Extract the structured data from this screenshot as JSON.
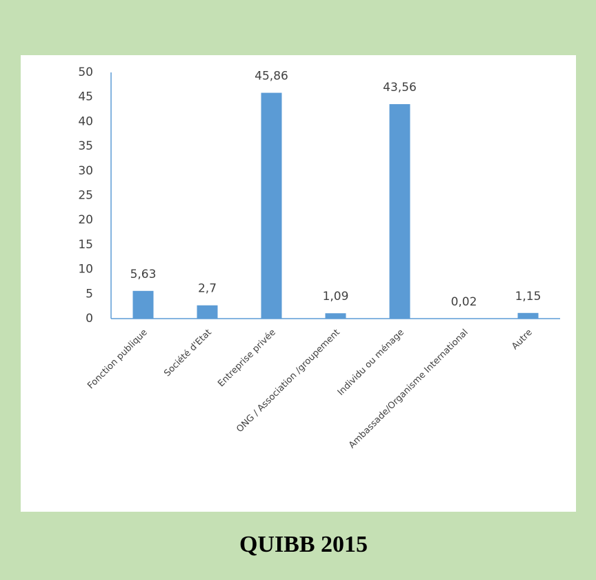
{
  "chart_data": {
    "type": "bar",
    "categories": [
      "Fonction publique",
      "Société d'Etat",
      "Entreprise privée",
      "ONG / Association /groupement",
      "Individu ou ménage",
      "Ambassade/Organisme International",
      "Autre"
    ],
    "values": [
      5.63,
      2.7,
      45.86,
      1.09,
      43.56,
      0.02,
      1.15
    ],
    "value_labels": [
      "5,63",
      "2,7",
      "45,86",
      "1,09",
      "43,56",
      "0,02",
      "1,15"
    ],
    "color": "#5b9bd5",
    "ylim": [
      0,
      50
    ],
    "yticks": [
      0,
      5,
      10,
      15,
      20,
      25,
      30,
      35,
      40,
      45,
      50
    ],
    "grid": false
  },
  "caption": "QUIBB 2015"
}
